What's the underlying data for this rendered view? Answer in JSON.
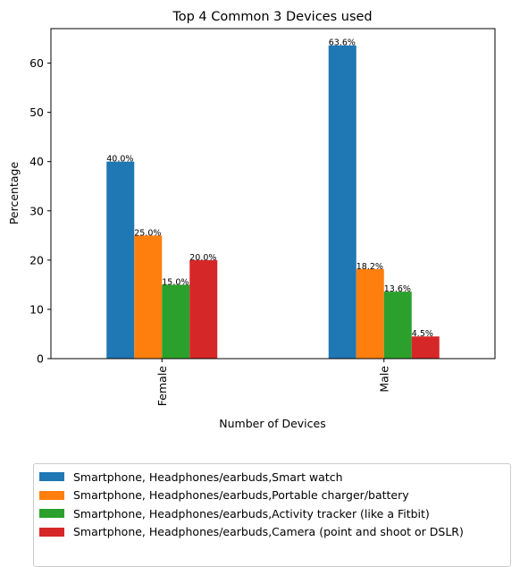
{
  "chart_data": {
    "type": "bar",
    "title": "Top 4 Common 3 Devices used",
    "xlabel": "Number of Devices",
    "ylabel": "Percentage",
    "categories": [
      "Female",
      "Male"
    ],
    "ylim": [
      0,
      67
    ],
    "yticks": [
      0,
      10,
      20,
      30,
      40,
      50,
      60
    ],
    "grid": false,
    "legend_position": "below",
    "series": [
      {
        "name": "Smartphone, Headphones/earbuds,Smart watch",
        "values": [
          40.0,
          63.6
        ],
        "labels": [
          "40.0%",
          "63.6%"
        ],
        "color": "#1f77b4"
      },
      {
        "name": "Smartphone, Headphones/earbuds,Portable charger/battery",
        "values": [
          25.0,
          18.2
        ],
        "labels": [
          "25.0%",
          "18.2%"
        ],
        "color": "#ff7f0e"
      },
      {
        "name": "Smartphone, Headphones/earbuds,Activity tracker (like a Fitbit)",
        "values": [
          15.0,
          13.6
        ],
        "labels": [
          "15.0%",
          "13.6%"
        ],
        "color": "#2ca02c"
      },
      {
        "name": "Smartphone, Headphones/earbuds,Camera (point and shoot or DSLR)",
        "values": [
          20.0,
          4.5
        ],
        "labels": [
          "20.0%",
          "4.5%"
        ],
        "color": "#d62728"
      }
    ]
  }
}
